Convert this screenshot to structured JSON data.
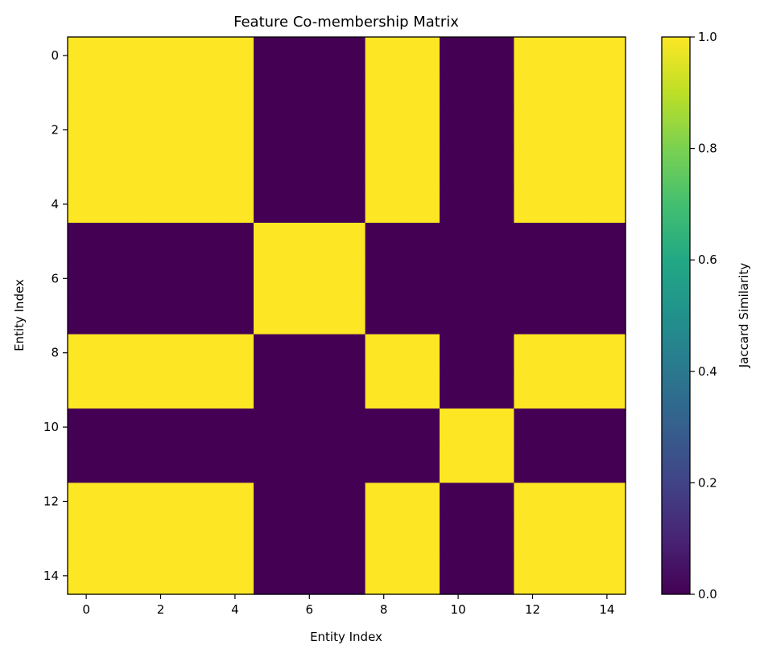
{
  "chart_data": {
    "type": "heatmap",
    "title": "Feature Co-membership Matrix",
    "xlabel": "Entity Index",
    "ylabel": "Entity Index",
    "x": [
      0,
      1,
      2,
      3,
      4,
      5,
      6,
      7,
      8,
      9,
      10,
      11,
      12,
      13,
      14
    ],
    "y": [
      0,
      1,
      2,
      3,
      4,
      5,
      6,
      7,
      8,
      9,
      10,
      11,
      12,
      13,
      14
    ],
    "x_ticks": [
      0,
      2,
      4,
      6,
      8,
      10,
      12,
      14
    ],
    "y_ticks": [
      0,
      2,
      4,
      6,
      8,
      10,
      12,
      14
    ],
    "x_tick_labels": [
      "0",
      "2",
      "4",
      "6",
      "8",
      "10",
      "12",
      "14"
    ],
    "y_tick_labels": [
      "0",
      "2",
      "4",
      "6",
      "8",
      "10",
      "12",
      "14"
    ],
    "values": [
      [
        1,
        1,
        1,
        1,
        1,
        0,
        0,
        0,
        1,
        1,
        0,
        0,
        1,
        1,
        1
      ],
      [
        1,
        1,
        1,
        1,
        1,
        0,
        0,
        0,
        1,
        1,
        0,
        0,
        1,
        1,
        1
      ],
      [
        1,
        1,
        1,
        1,
        1,
        0,
        0,
        0,
        1,
        1,
        0,
        0,
        1,
        1,
        1
      ],
      [
        1,
        1,
        1,
        1,
        1,
        0,
        0,
        0,
        1,
        1,
        0,
        0,
        1,
        1,
        1
      ],
      [
        1,
        1,
        1,
        1,
        1,
        0,
        0,
        0,
        1,
        1,
        0,
        0,
        1,
        1,
        1
      ],
      [
        0,
        0,
        0,
        0,
        0,
        1,
        1,
        1,
        0,
        0,
        0,
        0,
        0,
        0,
        0
      ],
      [
        0,
        0,
        0,
        0,
        0,
        1,
        1,
        1,
        0,
        0,
        0,
        0,
        0,
        0,
        0
      ],
      [
        0,
        0,
        0,
        0,
        0,
        1,
        1,
        1,
        0,
        0,
        0,
        0,
        0,
        0,
        0
      ],
      [
        1,
        1,
        1,
        1,
        1,
        0,
        0,
        0,
        1,
        1,
        0,
        0,
        1,
        1,
        1
      ],
      [
        1,
        1,
        1,
        1,
        1,
        0,
        0,
        0,
        1,
        1,
        0,
        0,
        1,
        1,
        1
      ],
      [
        0,
        0,
        0,
        0,
        0,
        0,
        0,
        0,
        0,
        0,
        1,
        1,
        0,
        0,
        0
      ],
      [
        0,
        0,
        0,
        0,
        0,
        0,
        0,
        0,
        0,
        0,
        1,
        1,
        0,
        0,
        0
      ],
      [
        1,
        1,
        1,
        1,
        1,
        0,
        0,
        0,
        1,
        1,
        0,
        0,
        1,
        1,
        1
      ],
      [
        1,
        1,
        1,
        1,
        1,
        0,
        0,
        0,
        1,
        1,
        0,
        0,
        1,
        1,
        1
      ],
      [
        1,
        1,
        1,
        1,
        1,
        0,
        0,
        0,
        1,
        1,
        0,
        0,
        1,
        1,
        1
      ]
    ],
    "vmin": 0,
    "vmax": 1,
    "colormap": "viridis",
    "colorbar": {
      "label": "Jaccard Similarity",
      "ticks": [
        0.0,
        0.2,
        0.4,
        0.6,
        0.8,
        1.0
      ],
      "tick_labels": [
        "0.0",
        "0.2",
        "0.4",
        "0.6",
        "0.8",
        "1.0"
      ]
    },
    "colors": {
      "low": "#440154",
      "high": "#fde725"
    },
    "grid": false
  }
}
